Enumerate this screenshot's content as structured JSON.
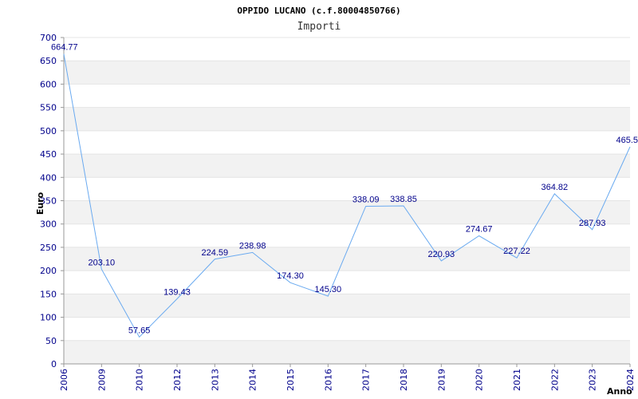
{
  "chart_data": {
    "type": "line",
    "title": "OPPIDO LUCANO (c.f.80004850766)",
    "subtitle": "Importi",
    "xlabel": "Anno",
    "ylabel": "Euro",
    "categories": [
      "2006",
      "2009",
      "2010",
      "2012",
      "2013",
      "2014",
      "2015",
      "2016",
      "2017",
      "2018",
      "2019",
      "2020",
      "2021",
      "2022",
      "2023",
      "2024"
    ],
    "series": [
      {
        "values": [
          664.77,
          203.1,
          57.65,
          139.43,
          224.59,
          238.98,
          174.3,
          145.3,
          338.09,
          338.85,
          220.93,
          274.67,
          227.22,
          364.82,
          287.93,
          465.5
        ],
        "labels": [
          "664.77",
          "203.10",
          "57.65",
          "139.43",
          "224.59",
          "238.98",
          "174.30",
          "145.30",
          "338.09",
          "338.85",
          "220.93",
          "274.67",
          "227.22",
          "364.82",
          "287.93",
          "465.5"
        ]
      }
    ],
    "ylim": [
      0,
      700
    ],
    "yticks": [
      "0",
      "50",
      "100",
      "150",
      "200",
      "250",
      "300",
      "350",
      "400",
      "450",
      "500",
      "550",
      "600",
      "650",
      "700"
    ],
    "grid": true,
    "colors": {
      "line": "#6aaaf0",
      "band": "#f2f2f2",
      "text": "#00008b"
    }
  }
}
